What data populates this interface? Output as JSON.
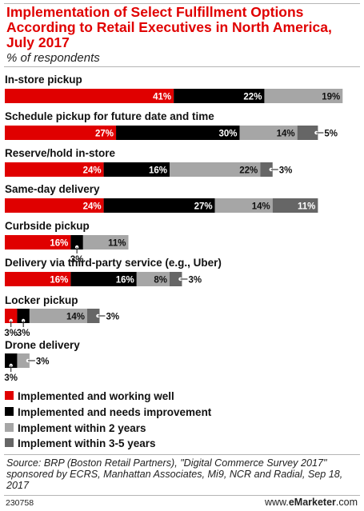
{
  "header": {
    "title": "Implementation of Select Fulfillment Options According to Retail Executives in North America, July 2017",
    "subtitle": "% of respondents"
  },
  "footer": {
    "source": "Source: BRP (Boston Retail Partners), \"Digital Commerce Survey 2017\" sponsored by ECRS, Manhattan Associates, Mi9, NCR and Radial, Sep 18, 2017",
    "chart_id": "230758",
    "brand_prefix": "www.",
    "brand_name": "eMarketer",
    "brand_suffix": ".com"
  },
  "colors": {
    "title": "#e00000",
    "working_well": "#e00000",
    "needs_improvement": "#000000",
    "within_2_years": "#a6a6a6",
    "within_3_5_years": "#666666"
  },
  "chart_data": {
    "type": "bar",
    "orientation": "horizontal",
    "stacked": true,
    "title": "Implementation of Select Fulfillment Options According to Retail Executives in North America, July 2017",
    "subtitle": "% of respondents",
    "unit": "%",
    "legend_position": "bottom-left",
    "categories": [
      "In-store pickup",
      "Schedule pickup for future date and time",
      "Reserve/hold in-store",
      "Same-day delivery",
      "Curbside pickup",
      "Delivery via third-party service (e.g., Uber)",
      "Locker pickup",
      "Drone delivery"
    ],
    "series": [
      {
        "name": "Implemented and working well",
        "color": "#e00000",
        "values": [
          41,
          27,
          24,
          24,
          16,
          16,
          3,
          0
        ]
      },
      {
        "name": "Implemented and needs improvement",
        "color": "#000000",
        "values": [
          22,
          30,
          16,
          27,
          3,
          16,
          3,
          3
        ]
      },
      {
        "name": "Implement within 2 years",
        "color": "#a6a6a6",
        "values": [
          19,
          14,
          22,
          14,
          11,
          8,
          14,
          3
        ]
      },
      {
        "name": "Implement within 3-5 years",
        "color": "#666666",
        "values": [
          0,
          5,
          3,
          11,
          0,
          3,
          3,
          0
        ]
      }
    ]
  }
}
